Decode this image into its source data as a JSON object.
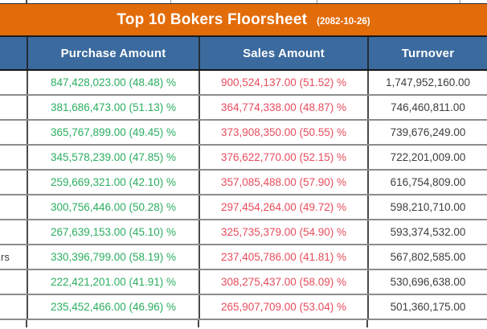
{
  "banner": {
    "title": "Top 10 Bokers Floorsheet",
    "date": "(2082-10-26)"
  },
  "columns": {
    "purchase": "Purchase Amount",
    "sales": "Sales Amount",
    "turnover": "Turnover"
  },
  "colors": {
    "banner_orange": "#E36C0A",
    "header_blue": "#3B6A9E",
    "purchase_green": "#2BAE60",
    "sales_red": "#E74C5C",
    "turnover_text": "#3D3D3D"
  },
  "rows": [
    {
      "name_fragment": "",
      "purchase": "847,428,023.00 (48.48) %",
      "sales": "900,524,137.00 (51.52) %",
      "turnover": "1,747,952,160.00"
    },
    {
      "name_fragment": "",
      "purchase": "381,686,473.00 (51.13) %",
      "sales": "364,774,338.00 (48.87) %",
      "turnover": "746,460,811.00"
    },
    {
      "name_fragment": "",
      "purchase": "365,767,899.00 (49.45) %",
      "sales": "373,908,350.00 (50.55) %",
      "turnover": "739,676,249.00"
    },
    {
      "name_fragment": "",
      "purchase": "345,578,239.00 (47.85) %",
      "sales": "376,622,770.00 (52.15) %",
      "turnover": "722,201,009.00"
    },
    {
      "name_fragment": "",
      "purchase": "259,669,321.00 (42.10) %",
      "sales": "357,085,488.00 (57.90) %",
      "turnover": "616,754,809.00"
    },
    {
      "name_fragment": "",
      "purchase": "300,756,446.00 (50.28) %",
      "sales": "297,454,264.00 (49.72) %",
      "turnover": "598,210,710.00"
    },
    {
      "name_fragment": "",
      "purchase": "267,639,153.00 (45.10) %",
      "sales": "325,735,379.00 (54.90) %",
      "turnover": "593,374,532.00"
    },
    {
      "name_fragment": "rs",
      "purchase": "330,396,799.00 (58.19) %",
      "sales": "237,405,786.00 (41.81) %",
      "turnover": "567,802,585.00"
    },
    {
      "name_fragment": "",
      "purchase": "222,421,201.00 (41.91) %",
      "sales": "308,275,437.00 (58.09) %",
      "turnover": "530,696,638.00"
    },
    {
      "name_fragment": "",
      "purchase": "235,452,466.00 (46.96) %",
      "sales": "265,907,709.00 (53.04) %",
      "turnover": "501,360,175.00"
    }
  ]
}
